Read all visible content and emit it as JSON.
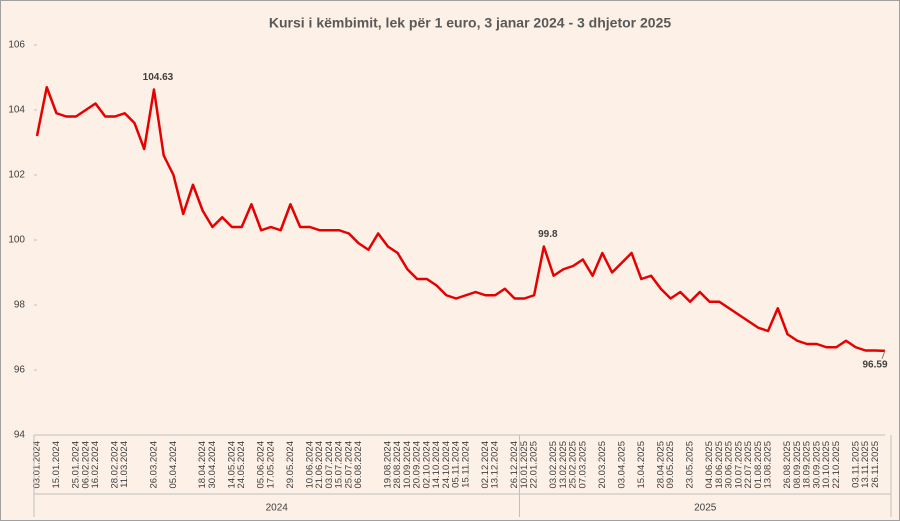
{
  "chart_data": {
    "type": "line",
    "title": "Kursi i këmbimit, lek për 1 euro, 3 janar 2024 - 3 dhjetor 2025",
    "categories": [
      "03.01.2024",
      null,
      "15.01.2024",
      null,
      "25.01.2024",
      "06.02.2024",
      "16.02.2024",
      null,
      "28.02.2024",
      "11.03.2024",
      null,
      null,
      "26.03.2024",
      null,
      "05.04.2024",
      null,
      null,
      "18.04.2024",
      "30.04.2024",
      null,
      "14.05.2024",
      "24.05.2024",
      null,
      "05.06.2024",
      "17.05.2024",
      null,
      "29.05.2024",
      null,
      "10.06.2024",
      "21.06.2024",
      "03.07.2024",
      "15.07.2024",
      "25.07.2024",
      "06.08.2024",
      null,
      null,
      "19.08.2024",
      "28.08.2024",
      "10.09.2024",
      "20.09.2024",
      "02.10.2024",
      "14.10.2024",
      "24.10.2024",
      "05.11.2024",
      "15.11.2024",
      null,
      "02.12.2024",
      "13.12.2024",
      null,
      "26.12.2024",
      "10.01.2025",
      "22.01.2025",
      null,
      "03.02.2025",
      "13.02.2025",
      "25.02.2025",
      "07.03.2025",
      null,
      "20.03.2025",
      null,
      "03.04.2025",
      null,
      "15.04.2025",
      null,
      "28.04.2025",
      "09.05.2025",
      null,
      "23.05.2025",
      null,
      "04.06.2025",
      "18.06.2025",
      "30.06.2025",
      "10.07.2025",
      "22.07.2025",
      "01.08.2025",
      "13.08.2025",
      null,
      "26.08.2025",
      "08.09.2025",
      "18.09.2025",
      "30.09.2025",
      "10.10.2025",
      "22.10.2025",
      null,
      "03.11.2025",
      "13.11.2025",
      "26.11.2025",
      null
    ],
    "series": [
      {
        "name": "Kursi",
        "color": "#e60000",
        "values": [
          103.2,
          104.7,
          103.9,
          103.8,
          103.8,
          104.0,
          104.2,
          103.8,
          103.8,
          103.9,
          103.6,
          102.8,
          104.63,
          102.6,
          102.0,
          100.8,
          101.7,
          100.9,
          100.4,
          100.7,
          100.4,
          100.4,
          101.1,
          100.3,
          100.4,
          100.3,
          101.1,
          100.4,
          100.4,
          100.3,
          100.3,
          100.3,
          100.2,
          99.9,
          99.7,
          100.2,
          99.8,
          99.6,
          99.1,
          98.8,
          98.8,
          98.6,
          98.3,
          98.2,
          98.3,
          98.4,
          98.3,
          98.3,
          98.5,
          98.2,
          98.2,
          98.3,
          99.8,
          98.9,
          99.1,
          99.2,
          99.4,
          98.9,
          99.6,
          99.0,
          99.3,
          99.6,
          98.8,
          98.9,
          98.5,
          98.2,
          98.4,
          98.1,
          98.4,
          98.1,
          98.1,
          97.9,
          97.7,
          97.5,
          97.3,
          97.2,
          97.9,
          97.1,
          96.9,
          96.8,
          96.8,
          96.7,
          96.7,
          96.9,
          96.7,
          96.6,
          96.6,
          96.59
        ],
        "value_labels": [
          null,
          null,
          null,
          null,
          null,
          null,
          null,
          null,
          null,
          null,
          null,
          null,
          "104.63",
          null,
          null,
          null,
          null,
          null,
          null,
          null,
          null,
          null,
          null,
          null,
          null,
          null,
          null,
          null,
          null,
          null,
          null,
          null,
          null,
          null,
          null,
          null,
          null,
          null,
          null,
          null,
          null,
          null,
          null,
          null,
          null,
          null,
          null,
          null,
          null,
          null,
          null,
          null,
          "99.8",
          null,
          null,
          null,
          null,
          null,
          null,
          null,
          null,
          null,
          null,
          null,
          null,
          null,
          null,
          null,
          null,
          null,
          null,
          null,
          null,
          null,
          null,
          null,
          null,
          null,
          null,
          null,
          null,
          null,
          null,
          null,
          null,
          null,
          null,
          "96.59"
        ]
      }
    ],
    "x_groups": [
      "2024",
      "2025"
    ],
    "ylim": [
      94,
      106
    ],
    "yticks": [
      94,
      96,
      98,
      100,
      102,
      104,
      106
    ],
    "grid": false
  }
}
